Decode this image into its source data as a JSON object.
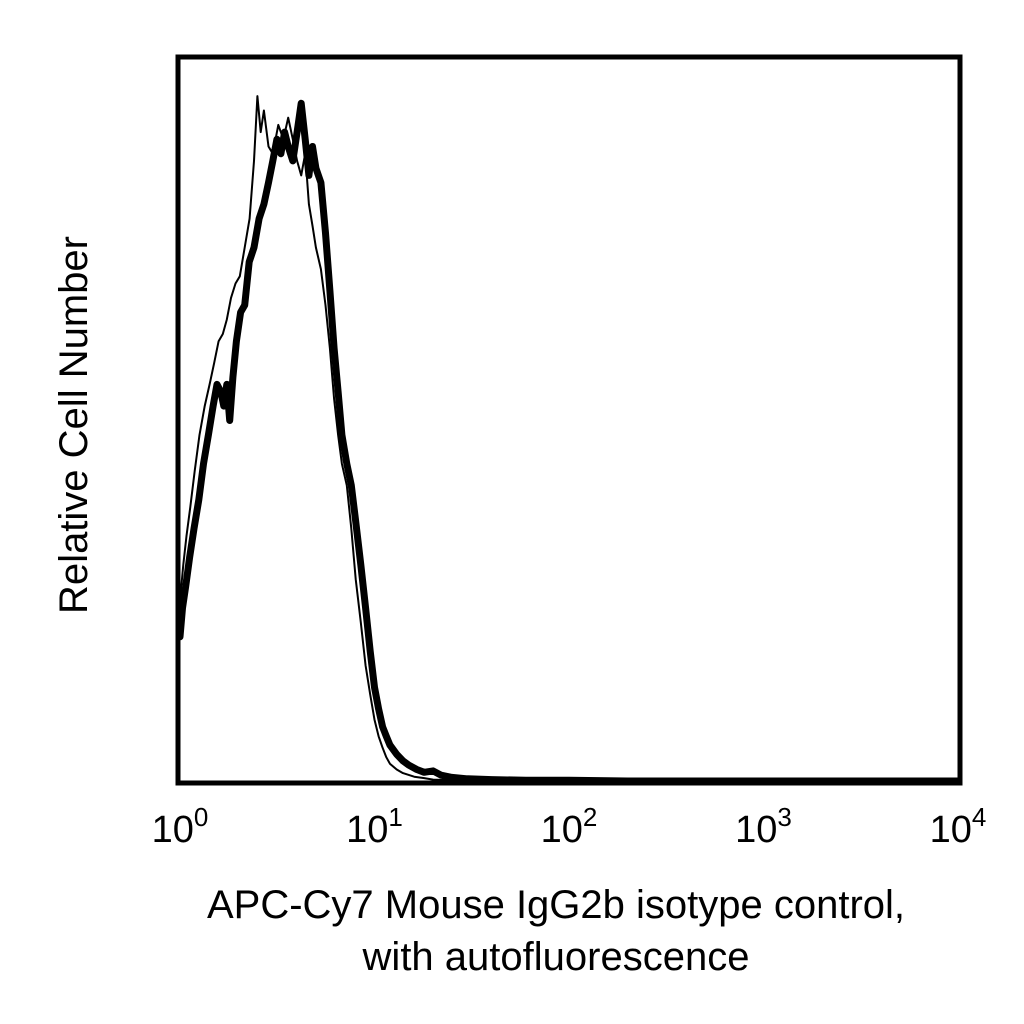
{
  "chart_data": {
    "type": "line",
    "title": "",
    "xlabel_lines": [
      "APC-Cy7 Mouse IgG2b isotype control,",
      "with autofluorescence"
    ],
    "ylabel": "Relative Cell Number",
    "x_scale": "log",
    "xlim": [
      1,
      10000
    ],
    "ylim": [
      0,
      1
    ],
    "grid": false,
    "legend": "none",
    "x_ticks": [
      {
        "base": "10",
        "exp": "0",
        "value": 1
      },
      {
        "base": "10",
        "exp": "1",
        "value": 10
      },
      {
        "base": "10",
        "exp": "2",
        "value": 100
      },
      {
        "base": "10",
        "exp": "3",
        "value": 1000
      },
      {
        "base": "10",
        "exp": "4",
        "value": 10000
      }
    ],
    "series": [
      {
        "style": "thick",
        "color": "#000000",
        "x": [
          1.0,
          1.03,
          1.07,
          1.12,
          1.18,
          1.25,
          1.32,
          1.4,
          1.48,
          1.55,
          1.62,
          1.68,
          1.74,
          1.8,
          1.87,
          1.95,
          2.05,
          2.15,
          2.27,
          2.4,
          2.55,
          2.7,
          2.85,
          3.0,
          3.15,
          3.3,
          3.45,
          3.6,
          3.8,
          4.0,
          4.2,
          4.4,
          4.6,
          4.8,
          5.0,
          5.3,
          5.6,
          5.9,
          6.2,
          6.5,
          6.8,
          7.2,
          7.6,
          8.0,
          8.5,
          9.0,
          9.5,
          10.0,
          10.5,
          11.0,
          11.5,
          12.0,
          13.0,
          14.0,
          15.0,
          16.5,
          18.0,
          20.0,
          22.0,
          25.0,
          30.0,
          40.0,
          60.0,
          100.0,
          200.0,
          1000.0,
          10000.0
        ],
        "y": [
          0.2,
          0.24,
          0.27,
          0.31,
          0.35,
          0.39,
          0.44,
          0.48,
          0.52,
          0.55,
          0.54,
          0.52,
          0.55,
          0.5,
          0.56,
          0.61,
          0.65,
          0.66,
          0.72,
          0.74,
          0.78,
          0.8,
          0.83,
          0.86,
          0.89,
          0.87,
          0.9,
          0.88,
          0.86,
          0.9,
          0.94,
          0.89,
          0.84,
          0.88,
          0.85,
          0.83,
          0.76,
          0.68,
          0.6,
          0.54,
          0.48,
          0.44,
          0.41,
          0.36,
          0.3,
          0.24,
          0.18,
          0.13,
          0.1,
          0.075,
          0.062,
          0.05,
          0.037,
          0.028,
          0.022,
          0.016,
          0.012,
          0.014,
          0.008,
          0.005,
          0.003,
          0.002,
          0.001,
          0.001,
          0.0,
          0.0,
          0.0
        ]
      },
      {
        "style": "thin",
        "color": "#000000",
        "x": [
          1.0,
          1.04,
          1.08,
          1.13,
          1.19,
          1.26,
          1.34,
          1.42,
          1.5,
          1.58,
          1.66,
          1.74,
          1.83,
          1.93,
          2.03,
          2.15,
          2.28,
          2.4,
          2.5,
          2.6,
          2.7,
          2.85,
          3.0,
          3.2,
          3.4,
          3.6,
          3.8,
          4.0,
          4.2,
          4.4,
          4.6,
          4.8,
          5.0,
          5.3,
          5.6,
          5.9,
          6.2,
          6.5,
          6.8,
          7.2,
          7.6,
          8.0,
          8.5,
          9.0,
          9.5,
          10.0,
          10.5,
          11.0,
          11.5,
          12.0,
          13.0,
          14.0,
          16.0,
          18.0,
          20.0,
          25.0,
          30.0,
          50.0,
          100.0,
          10000.0
        ],
        "y": [
          0.25,
          0.3,
          0.34,
          0.38,
          0.43,
          0.48,
          0.52,
          0.55,
          0.58,
          0.61,
          0.62,
          0.64,
          0.67,
          0.69,
          0.7,
          0.74,
          0.78,
          0.86,
          0.95,
          0.9,
          0.93,
          0.88,
          0.87,
          0.91,
          0.89,
          0.92,
          0.89,
          0.86,
          0.84,
          0.87,
          0.8,
          0.77,
          0.74,
          0.71,
          0.66,
          0.6,
          0.53,
          0.48,
          0.44,
          0.41,
          0.35,
          0.28,
          0.22,
          0.16,
          0.12,
          0.085,
          0.062,
          0.046,
          0.033,
          0.024,
          0.016,
          0.011,
          0.006,
          0.004,
          0.002,
          0.001,
          0.0,
          0.0,
          0.0,
          0.0
        ]
      }
    ]
  }
}
